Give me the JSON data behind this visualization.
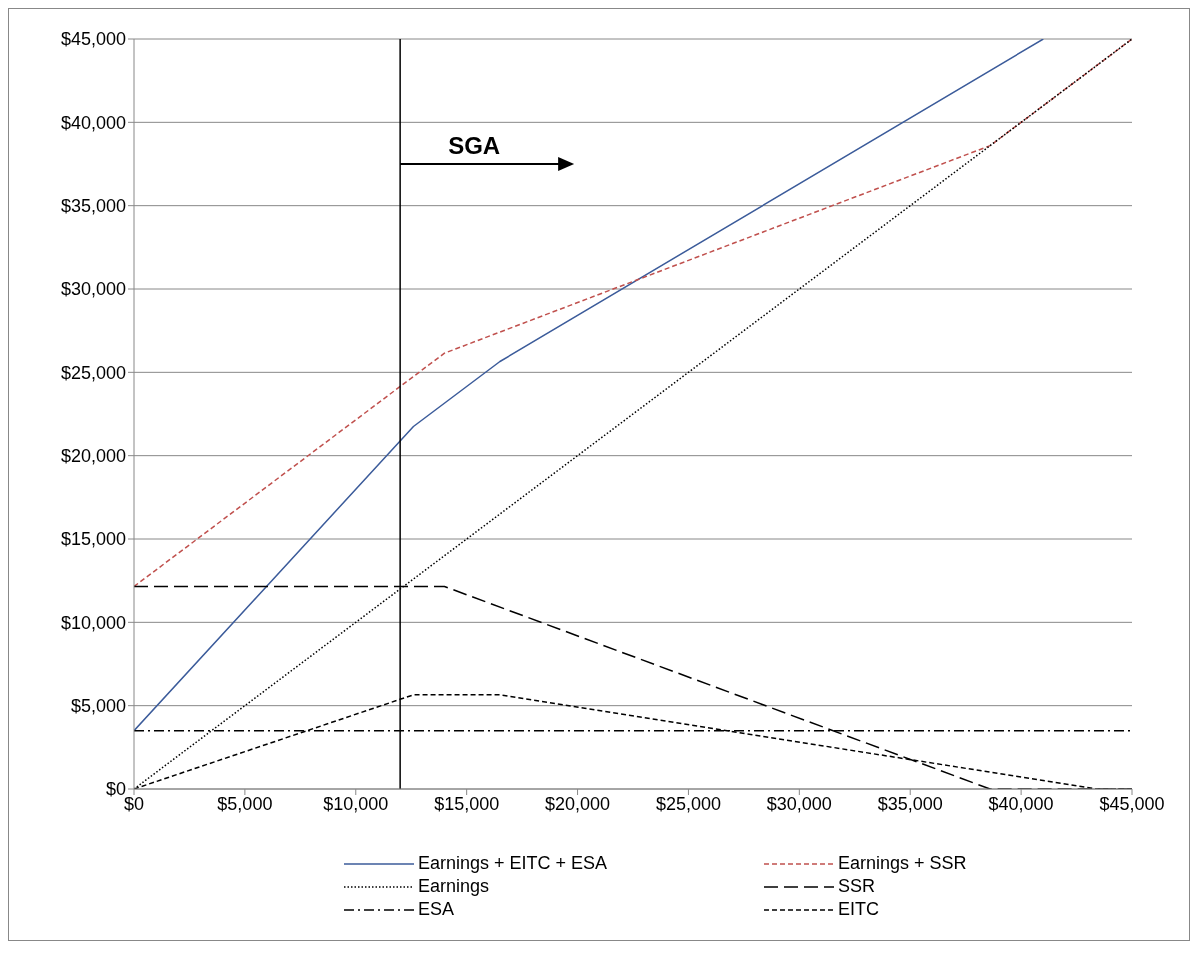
{
  "chart_data": {
    "type": "line",
    "series": [
      {
        "name": "Earnings + EITC + ESA",
        "color": "#3b5b9a",
        "line_style": "solid",
        "x": [
          0,
          12600,
          16500,
          41000
        ],
        "values": [
          3500,
          21750,
          25650,
          45000
        ]
      },
      {
        "name": "Earnings + SSR",
        "color": "#c0504d",
        "line_style": "dashed",
        "x": [
          0,
          14000,
          38600,
          45000
        ],
        "values": [
          12150,
          26150,
          38600,
          45000
        ]
      },
      {
        "name": "Earnings",
        "color": "#000000",
        "line_style": "dotted",
        "x": [
          0,
          45000
        ],
        "values": [
          0,
          45000
        ]
      },
      {
        "name": "SSR",
        "color": "#000000",
        "line_style": "longdash",
        "x": [
          0,
          14000,
          38600,
          45000
        ],
        "values": [
          12150,
          12150,
          0,
          0
        ]
      },
      {
        "name": "ESA",
        "color": "#000000",
        "line_style": "dashdot",
        "x": [
          0,
          45000
        ],
        "values": [
          3500,
          3500
        ]
      },
      {
        "name": "EITC",
        "color": "#000000",
        "line_style": "dashed",
        "x": [
          0,
          12600,
          16500,
          43400,
          45000
        ],
        "values": [
          0,
          5650,
          5650,
          0,
          0
        ]
      }
    ],
    "xlim": [
      0,
      45000
    ],
    "xticks": [
      {
        "value": 0,
        "label": "$0"
      },
      {
        "value": 5000,
        "label": "$5,000"
      },
      {
        "value": 10000,
        "label": "$10,000"
      },
      {
        "value": 15000,
        "label": "$15,000"
      },
      {
        "value": 20000,
        "label": "$20,000"
      },
      {
        "value": 25000,
        "label": "$25,000"
      },
      {
        "value": 30000,
        "label": "$30,000"
      },
      {
        "value": 35000,
        "label": "$35,000"
      },
      {
        "value": 40000,
        "label": "$40,000"
      },
      {
        "value": 45000,
        "label": "$45,000"
      }
    ],
    "ylim": [
      0,
      45000
    ],
    "yticks": [
      {
        "value": 0,
        "label": "$0"
      },
      {
        "value": 5000,
        "label": "$5,000"
      },
      {
        "value": 10000,
        "label": "$10,000"
      },
      {
        "value": 15000,
        "label": "$15,000"
      },
      {
        "value": 20000,
        "label": "$20,000"
      },
      {
        "value": 25000,
        "label": "$25,000"
      },
      {
        "value": 30000,
        "label": "$30,000"
      },
      {
        "value": 35000,
        "label": "$35,000"
      },
      {
        "value": 40000,
        "label": "$40,000"
      },
      {
        "value": 45000,
        "label": "$45,000"
      }
    ],
    "ref_lines": [
      {
        "axis": "x",
        "value": 12000,
        "color": "#000000"
      }
    ],
    "annotations": [
      {
        "text": "SGA",
        "x": 12000,
        "y": 37500
      }
    ],
    "grid": "y",
    "legend": "bottom"
  }
}
